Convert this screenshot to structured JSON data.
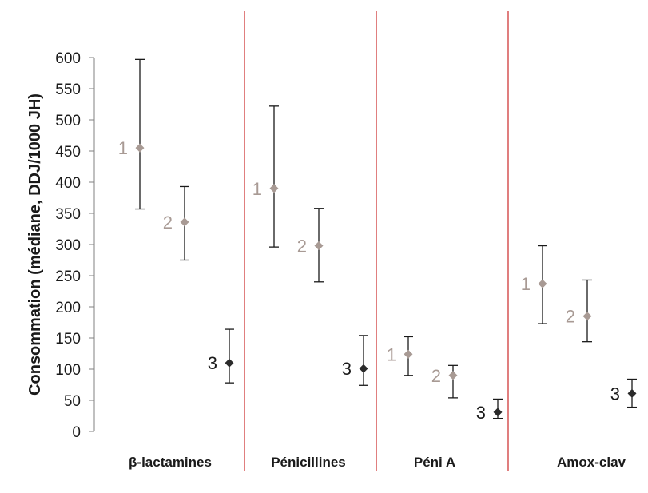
{
  "chart_data": {
    "type": "scatter",
    "ylabel": "Consommation (médiane, DDJ/1000 JH)",
    "xlabel": "",
    "ylim": [
      0,
      600
    ],
    "yticks": [
      0,
      50,
      100,
      150,
      200,
      250,
      300,
      350,
      400,
      450,
      500,
      550,
      600
    ],
    "grid": false,
    "error_bars": true,
    "colors": {
      "point_light": "#a89a94",
      "point_dark": "#2b2b2b",
      "label_light": "#a89a94",
      "label_dark": "#1a1a1a",
      "separator": "#d03a3a",
      "errorbar": "#1a1a1a",
      "axis": "#808080"
    },
    "groups": [
      {
        "name": "β-lactamines",
        "points": [
          {
            "label": "1",
            "value": 455,
            "low": 357,
            "high": 597
          },
          {
            "label": "2",
            "value": 336,
            "low": 275,
            "high": 393
          },
          {
            "label": "3",
            "value": 110,
            "low": 78,
            "high": 164
          }
        ]
      },
      {
        "name": "Pénicillines",
        "points": [
          {
            "label": "1",
            "value": 390,
            "low": 296,
            "high": 522
          },
          {
            "label": "2",
            "value": 298,
            "low": 240,
            "high": 358
          },
          {
            "label": "3",
            "value": 101,
            "low": 74,
            "high": 154
          }
        ]
      },
      {
        "name": "Péni A",
        "points": [
          {
            "label": "1",
            "value": 124,
            "low": 90,
            "high": 152
          },
          {
            "label": "2",
            "value": 90,
            "low": 54,
            "high": 106
          },
          {
            "label": "3",
            "value": 31,
            "low": 21,
            "high": 52
          }
        ]
      },
      {
        "name": "Amox-clav",
        "points": [
          {
            "label": "1",
            "value": 237,
            "low": 173,
            "high": 298
          },
          {
            "label": "2",
            "value": 185,
            "low": 144,
            "high": 243
          },
          {
            "label": "3",
            "value": 61,
            "low": 39,
            "high": 84
          }
        ]
      }
    ]
  }
}
